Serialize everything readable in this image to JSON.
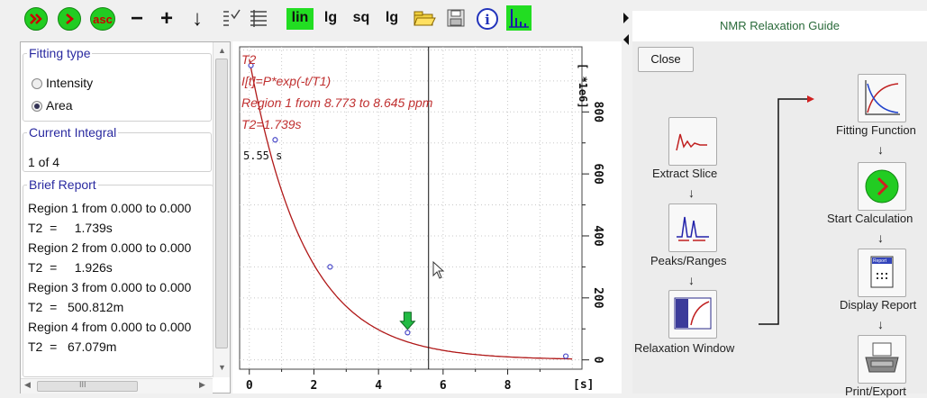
{
  "toolbar": {
    "asc_label": "asc",
    "scale_lin": "lin",
    "scale_lg": "lg",
    "scale_sq": "sq",
    "scale_lg2": "lg",
    "minus": "−",
    "plus": "+",
    "down": "↓"
  },
  "left_panel": {
    "fitting_type": {
      "legend": "Fitting type",
      "options": [
        {
          "label": "Intensity",
          "selected": false
        },
        {
          "label": "Area",
          "selected": true
        }
      ]
    },
    "current_integral": {
      "legend": "Current Integral",
      "value": "1 of 4"
    },
    "brief_report": {
      "legend": "Brief Report",
      "lines": [
        "Region 1 from 0.000 to 0.000",
        "T2  =     1.739s",
        "Region 2 from 0.000 to 0.000",
        "T2  =     1.926s",
        "Region 3 from 0.000 to 0.000",
        "T2  =   500.812m",
        "Region 4 from 0.000 to 0.000",
        "T2  =   67.079m"
      ]
    },
    "scroll_marker": "III"
  },
  "plot": {
    "title": "T2",
    "formula": "I[t]=P*exp(-t/T1)",
    "region": "Region 1 from 8.773 to 8.645 ppm",
    "result": "T2=1.739s",
    "cursor_readout": "5.55 s",
    "y_unit": "[ *1e6]",
    "x_unit": "[s]",
    "x_ticks": [
      "0",
      "2",
      "4",
      "6",
      "8"
    ],
    "y_ticks": [
      "0",
      "200",
      "400",
      "600",
      "800"
    ]
  },
  "chart_data": {
    "type": "scatter",
    "title": "T2",
    "xlabel": "[s]",
    "ylabel": "[ *1e6]",
    "xlim": [
      -0.3,
      10.3
    ],
    "ylim": [
      -30,
      1010
    ],
    "points": [
      {
        "x": 0.05,
        "y": 950
      },
      {
        "x": 0.8,
        "y": 710
      },
      {
        "x": 2.5,
        "y": 300
      },
      {
        "x": 4.9,
        "y": 88
      },
      {
        "x": 9.8,
        "y": 12
      }
    ],
    "fit": {
      "P": 970,
      "T2": 1.739
    },
    "cursor_x": 5.55,
    "marker_x": 4.9,
    "colors": {
      "fit": "#b01818",
      "points": "#4a4ac8",
      "marker": "#22bb44"
    }
  },
  "guide": {
    "title": "NMR Relaxation Guide",
    "close_label": "Close",
    "steps": {
      "extract_slice": "Extract Slice",
      "peaks_ranges": "Peaks/Ranges",
      "relaxation_window": "Relaxation Window",
      "fitting_function": "Fitting Function",
      "start_calculation": "Start Calculation",
      "display_report": "Display Report",
      "print_export": "Print/Export"
    },
    "icon_text": {
      "report": "Report",
      "relax": "Param\nactual\nframe"
    }
  }
}
